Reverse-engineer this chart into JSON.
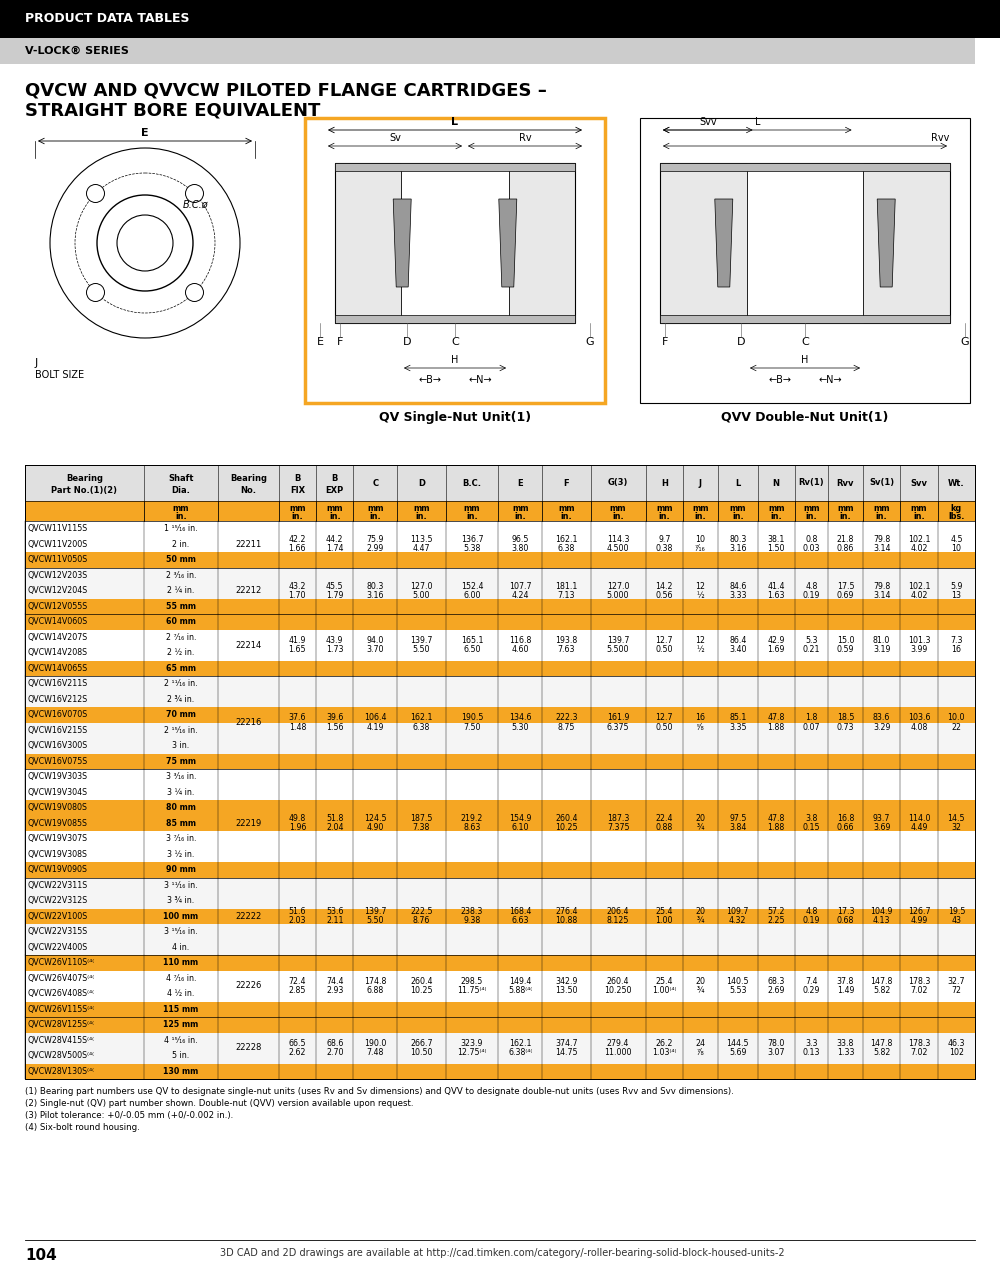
{
  "page_title": "PRODUCT DATA TABLES",
  "page_subtitle": "V-LOCK® SERIES",
  "section_title_line1": "QVCW AND QVVCW PILOTED FLANGE CARTRIDGES –",
  "section_title_line2": "STRAIGHT BORE EQUIVALENT",
  "diagram_label_left": "QV Single-Nut Unit(1)",
  "diagram_label_right": "QVV Double-Nut Unit(1)",
  "orange": "#F5A623",
  "black": "#000000",
  "light_gray": "#CCCCCC",
  "header_gray": "#E0E0E0",
  "col_labels": [
    "Bearing\nPart No.(1)(2)",
    "Shaft\nDia.",
    "Bearing\nNo.",
    "B\nFIX",
    "B\nEXP",
    "C",
    "D",
    "B.C.",
    "E",
    "F",
    "G(3)",
    "H",
    "J",
    "L",
    "N",
    "Rv(1)",
    "Rvv",
    "Sv(1)",
    "Svv",
    "Wt."
  ],
  "col_widths_raw": [
    108,
    68,
    55,
    34,
    34,
    40,
    44,
    48,
    40,
    44,
    50,
    34,
    32,
    36,
    34,
    30,
    32,
    34,
    34,
    34
  ],
  "unit_row_mm": [
    "",
    "mm",
    "",
    "mm",
    "mm",
    "mm",
    "mm",
    "mm",
    "mm",
    "mm",
    "mm",
    "mm",
    "mm",
    "mm",
    "mm",
    "mm",
    "mm",
    "mm",
    "mm",
    "kg"
  ],
  "unit_row_in": [
    "",
    "in.",
    "",
    "in.",
    "in.",
    "in.",
    "in.",
    "in.",
    "in.",
    "in.",
    "in.",
    "in.",
    "in.",
    "in.",
    "in.",
    "in.",
    "in.",
    "in.",
    "in.",
    "lbs."
  ],
  "table_data": [
    {
      "parts": [
        "QVCW11V115S",
        "QVCW11V200S",
        "QVCW11V050S"
      ],
      "shafts": [
        "1 ¹⁵⁄₁₆ in.",
        "2 in.",
        "50 mm"
      ],
      "bearing_no": "22211",
      "vals_mm": [
        "42.2",
        "44.2",
        "75.9",
        "113.5",
        "136.7",
        "96.5",
        "162.1",
        "114.3",
        "9.7",
        "10",
        "80.3",
        "38.1",
        "0.8",
        "21.8",
        "79.8",
        "102.1",
        "4.5"
      ],
      "vals_in": [
        "1.66",
        "1.74",
        "2.99",
        "4.47",
        "5.38",
        "3.80",
        "6.38",
        "4.500",
        "0.38",
        "⁷⁄₁₆",
        "3.16",
        "1.50",
        "0.03",
        "0.86",
        "3.14",
        "4.02",
        "10"
      ]
    },
    {
      "parts": [
        "QVCW12V203S",
        "QVCW12V204S",
        "QVCW12V055S"
      ],
      "shafts": [
        "2 ³⁄₁₆ in.",
        "2 ¼ in.",
        "55 mm"
      ],
      "bearing_no": "22212",
      "vals_mm": [
        "43.2",
        "45.5",
        "80.3",
        "127.0",
        "152.4",
        "107.7",
        "181.1",
        "127.0",
        "14.2",
        "12",
        "84.6",
        "41.4",
        "4.8",
        "17.5",
        "79.8",
        "102.1",
        "5.9"
      ],
      "vals_in": [
        "1.70",
        "1.79",
        "3.16",
        "5.00",
        "6.00",
        "4.24",
        "7.13",
        "5.000",
        "0.56",
        "½",
        "3.33",
        "1.63",
        "0.19",
        "0.69",
        "3.14",
        "4.02",
        "13"
      ]
    },
    {
      "parts": [
        "QVCW14V060S",
        "QVCW14V207S",
        "QVCW14V208S",
        "QVCW14V065S"
      ],
      "shafts": [
        "60 mm",
        "2 ⁷⁄₁₆ in.",
        "2 ½ in.",
        "65 mm"
      ],
      "bearing_no": "22214",
      "vals_mm": [
        "41.9",
        "43.9",
        "94.0",
        "139.7",
        "165.1",
        "116.8",
        "193.8",
        "139.7",
        "12.7",
        "12",
        "86.4",
        "42.9",
        "5.3",
        "15.0",
        "81.0",
        "101.3",
        "7.3"
      ],
      "vals_in": [
        "1.65",
        "1.73",
        "3.70",
        "5.50",
        "6.50",
        "4.60",
        "7.63",
        "5.500",
        "0.50",
        "½",
        "3.40",
        "1.69",
        "0.21",
        "0.59",
        "3.19",
        "3.99",
        "16"
      ]
    },
    {
      "parts": [
        "QVCW16V211S",
        "QVCW16V212S",
        "QVCW16V070S",
        "QVCW16V215S",
        "QVCW16V300S",
        "QVCW16V075S"
      ],
      "shafts": [
        "2 ¹¹⁄₁₆ in.",
        "2 ¾ in.",
        "70 mm",
        "2 ¹⁵⁄₁₆ in.",
        "3 in.",
        "75 mm"
      ],
      "bearing_no": "22216",
      "vals_mm": [
        "37.6",
        "39.6",
        "106.4",
        "162.1",
        "190.5",
        "134.6",
        "222.3",
        "161.9",
        "12.7",
        "16",
        "85.1",
        "47.8",
        "1.8",
        "18.5",
        "83.6",
        "103.6",
        "10.0"
      ],
      "vals_in": [
        "1.48",
        "1.56",
        "4.19",
        "6.38",
        "7.50",
        "5.30",
        "8.75",
        "6.375",
        "0.50",
        "⁵⁄₈",
        "3.35",
        "1.88",
        "0.07",
        "0.73",
        "3.29",
        "4.08",
        "22"
      ]
    },
    {
      "parts": [
        "QVCW19V303S",
        "QVCW19V304S",
        "QVCW19V080S",
        "QVCW19V085S",
        "QVCW19V307S",
        "QVCW19V308S",
        "QVCW19V090S"
      ],
      "shafts": [
        "3 ³⁄₁₆ in.",
        "3 ¼ in.",
        "80 mm",
        "85 mm",
        "3 ⁷⁄₁₆ in.",
        "3 ½ in.",
        "90 mm"
      ],
      "bearing_no": "22219",
      "vals_mm": [
        "49.8",
        "51.8",
        "124.5",
        "187.5",
        "219.2",
        "154.9",
        "260.4",
        "187.3",
        "22.4",
        "20",
        "97.5",
        "47.8",
        "3.8",
        "16.8",
        "93.7",
        "114.0",
        "14.5"
      ],
      "vals_in": [
        "1.96",
        "2.04",
        "4.90",
        "7.38",
        "8.63",
        "6.10",
        "10.25",
        "7.375",
        "0.88",
        "¾",
        "3.84",
        "1.88",
        "0.15",
        "0.66",
        "3.69",
        "4.49",
        "32"
      ]
    },
    {
      "parts": [
        "QVCW22V311S",
        "QVCW22V312S",
        "QVCW22V100S",
        "QVCW22V315S",
        "QVCW22V400S"
      ],
      "shafts": [
        "3 ¹¹⁄₁₆ in.",
        "3 ¾ in.",
        "100 mm",
        "3 ¹⁵⁄₁₆ in.",
        "4 in."
      ],
      "bearing_no": "22222",
      "vals_mm": [
        "51.6",
        "53.6",
        "139.7",
        "222.5",
        "238.3",
        "168.4",
        "276.4",
        "206.4",
        "25.4",
        "20",
        "109.7",
        "57.2",
        "4.8",
        "17.3",
        "104.9",
        "126.7",
        "19.5"
      ],
      "vals_in": [
        "2.03",
        "2.11",
        "5.50",
        "8.76",
        "9.38",
        "6.63",
        "10.88",
        "8.125",
        "1.00",
        "¾",
        "4.32",
        "2.25",
        "0.19",
        "0.68",
        "4.13",
        "4.99",
        "43"
      ]
    },
    {
      "parts": [
        "QVCW26V110S⁽⁴⁽",
        "QVCW26V407S⁽⁴⁽",
        "QVCW26V408S⁽⁴⁽",
        "QVCW26V115S⁽⁴⁽"
      ],
      "shafts": [
        "110 mm",
        "4 ⁷⁄₁₆ in.",
        "4 ½ in.",
        "115 mm"
      ],
      "bearing_no": "22226",
      "vals_mm": [
        "72.4",
        "74.4",
        "174.8",
        "260.4",
        "298.5",
        "149.4",
        "342.9",
        "260.4",
        "25.4",
        "20",
        "140.5",
        "68.3",
        "7.4",
        "37.8",
        "147.8",
        "178.3",
        "32.7"
      ],
      "vals_in": [
        "2.85",
        "2.93",
        "6.88",
        "10.25",
        "11.75⁽⁴⁽",
        "5.88⁽⁴⁽",
        "13.50",
        "10.250",
        "1.00⁽⁴⁽",
        "¾",
        "5.53",
        "2.69",
        "0.29",
        "1.49",
        "5.82",
        "7.02",
        "72"
      ]
    },
    {
      "parts": [
        "QVCW28V125S⁽⁴⁽",
        "QVCW28V415S⁽⁴⁽",
        "QVCW28V500S⁽⁴⁽",
        "QVCW28V130S⁽⁴⁽"
      ],
      "shafts": [
        "125 mm",
        "4 ¹⁵⁄₁₆ in.",
        "5 in.",
        "130 mm"
      ],
      "bearing_no": "22228",
      "vals_mm": [
        "66.5",
        "68.6",
        "190.0",
        "266.7",
        "323.9",
        "162.1",
        "374.7",
        "279.4",
        "26.2",
        "24",
        "144.5",
        "78.0",
        "3.3",
        "33.8",
        "147.8",
        "178.3",
        "46.3"
      ],
      "vals_in": [
        "2.62",
        "2.70",
        "7.48",
        "10.50",
        "12.75⁽⁴⁽",
        "6.38⁽⁴⁽",
        "14.75",
        "11.000",
        "1.03⁽⁴⁽",
        "⁷⁄₈",
        "5.69",
        "3.07",
        "0.13",
        "1.33",
        "5.82",
        "7.02",
        "102"
      ]
    }
  ],
  "footnotes": [
    "(1) Bearing part numbers use QV to designate single-nut units (uses Rv and Sv dimensions) and QVV to designate double-nut units (uses Rvv and Svv dimensions).",
    "(2) Single-nut (QV) part number shown. Double-nut (QVV) version available upon request.",
    "(3) Pilot tolerance: +0/-0.05 mm (+0/-0.002 in.).",
    "(4) Six-bolt round housing."
  ],
  "page_number": "104",
  "footer_text": "3D CAD and 2D drawings are available at http://cad.timken.com/category/-roller-bearing-solid-block-housed-units-2"
}
